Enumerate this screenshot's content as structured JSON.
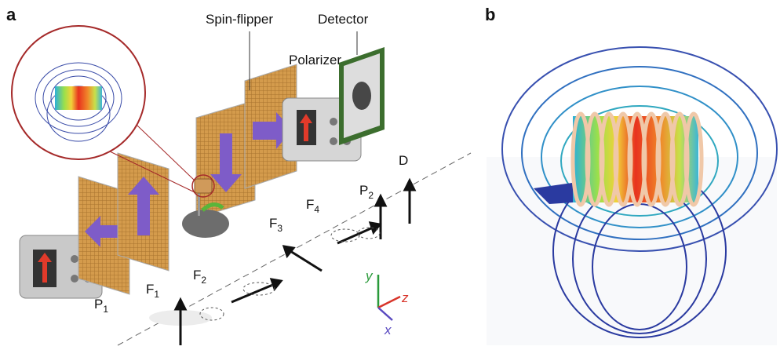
{
  "panels": {
    "a": "a",
    "b": "b"
  },
  "labels": {
    "spin_flipper": "Spin-flipper",
    "detector": "Detector",
    "polarizer": "Polarizer"
  },
  "positions": [
    {
      "text": "P",
      "sub": "1"
    },
    {
      "text": "F",
      "sub": "1"
    },
    {
      "text": "F",
      "sub": "2"
    },
    {
      "text": "F",
      "sub": "3"
    },
    {
      "text": "F",
      "sub": "4"
    },
    {
      "text": "P",
      "sub": "2"
    },
    {
      "text": "D"
    }
  ],
  "axes": {
    "y": "y",
    "z": "z",
    "x": "x"
  }
}
